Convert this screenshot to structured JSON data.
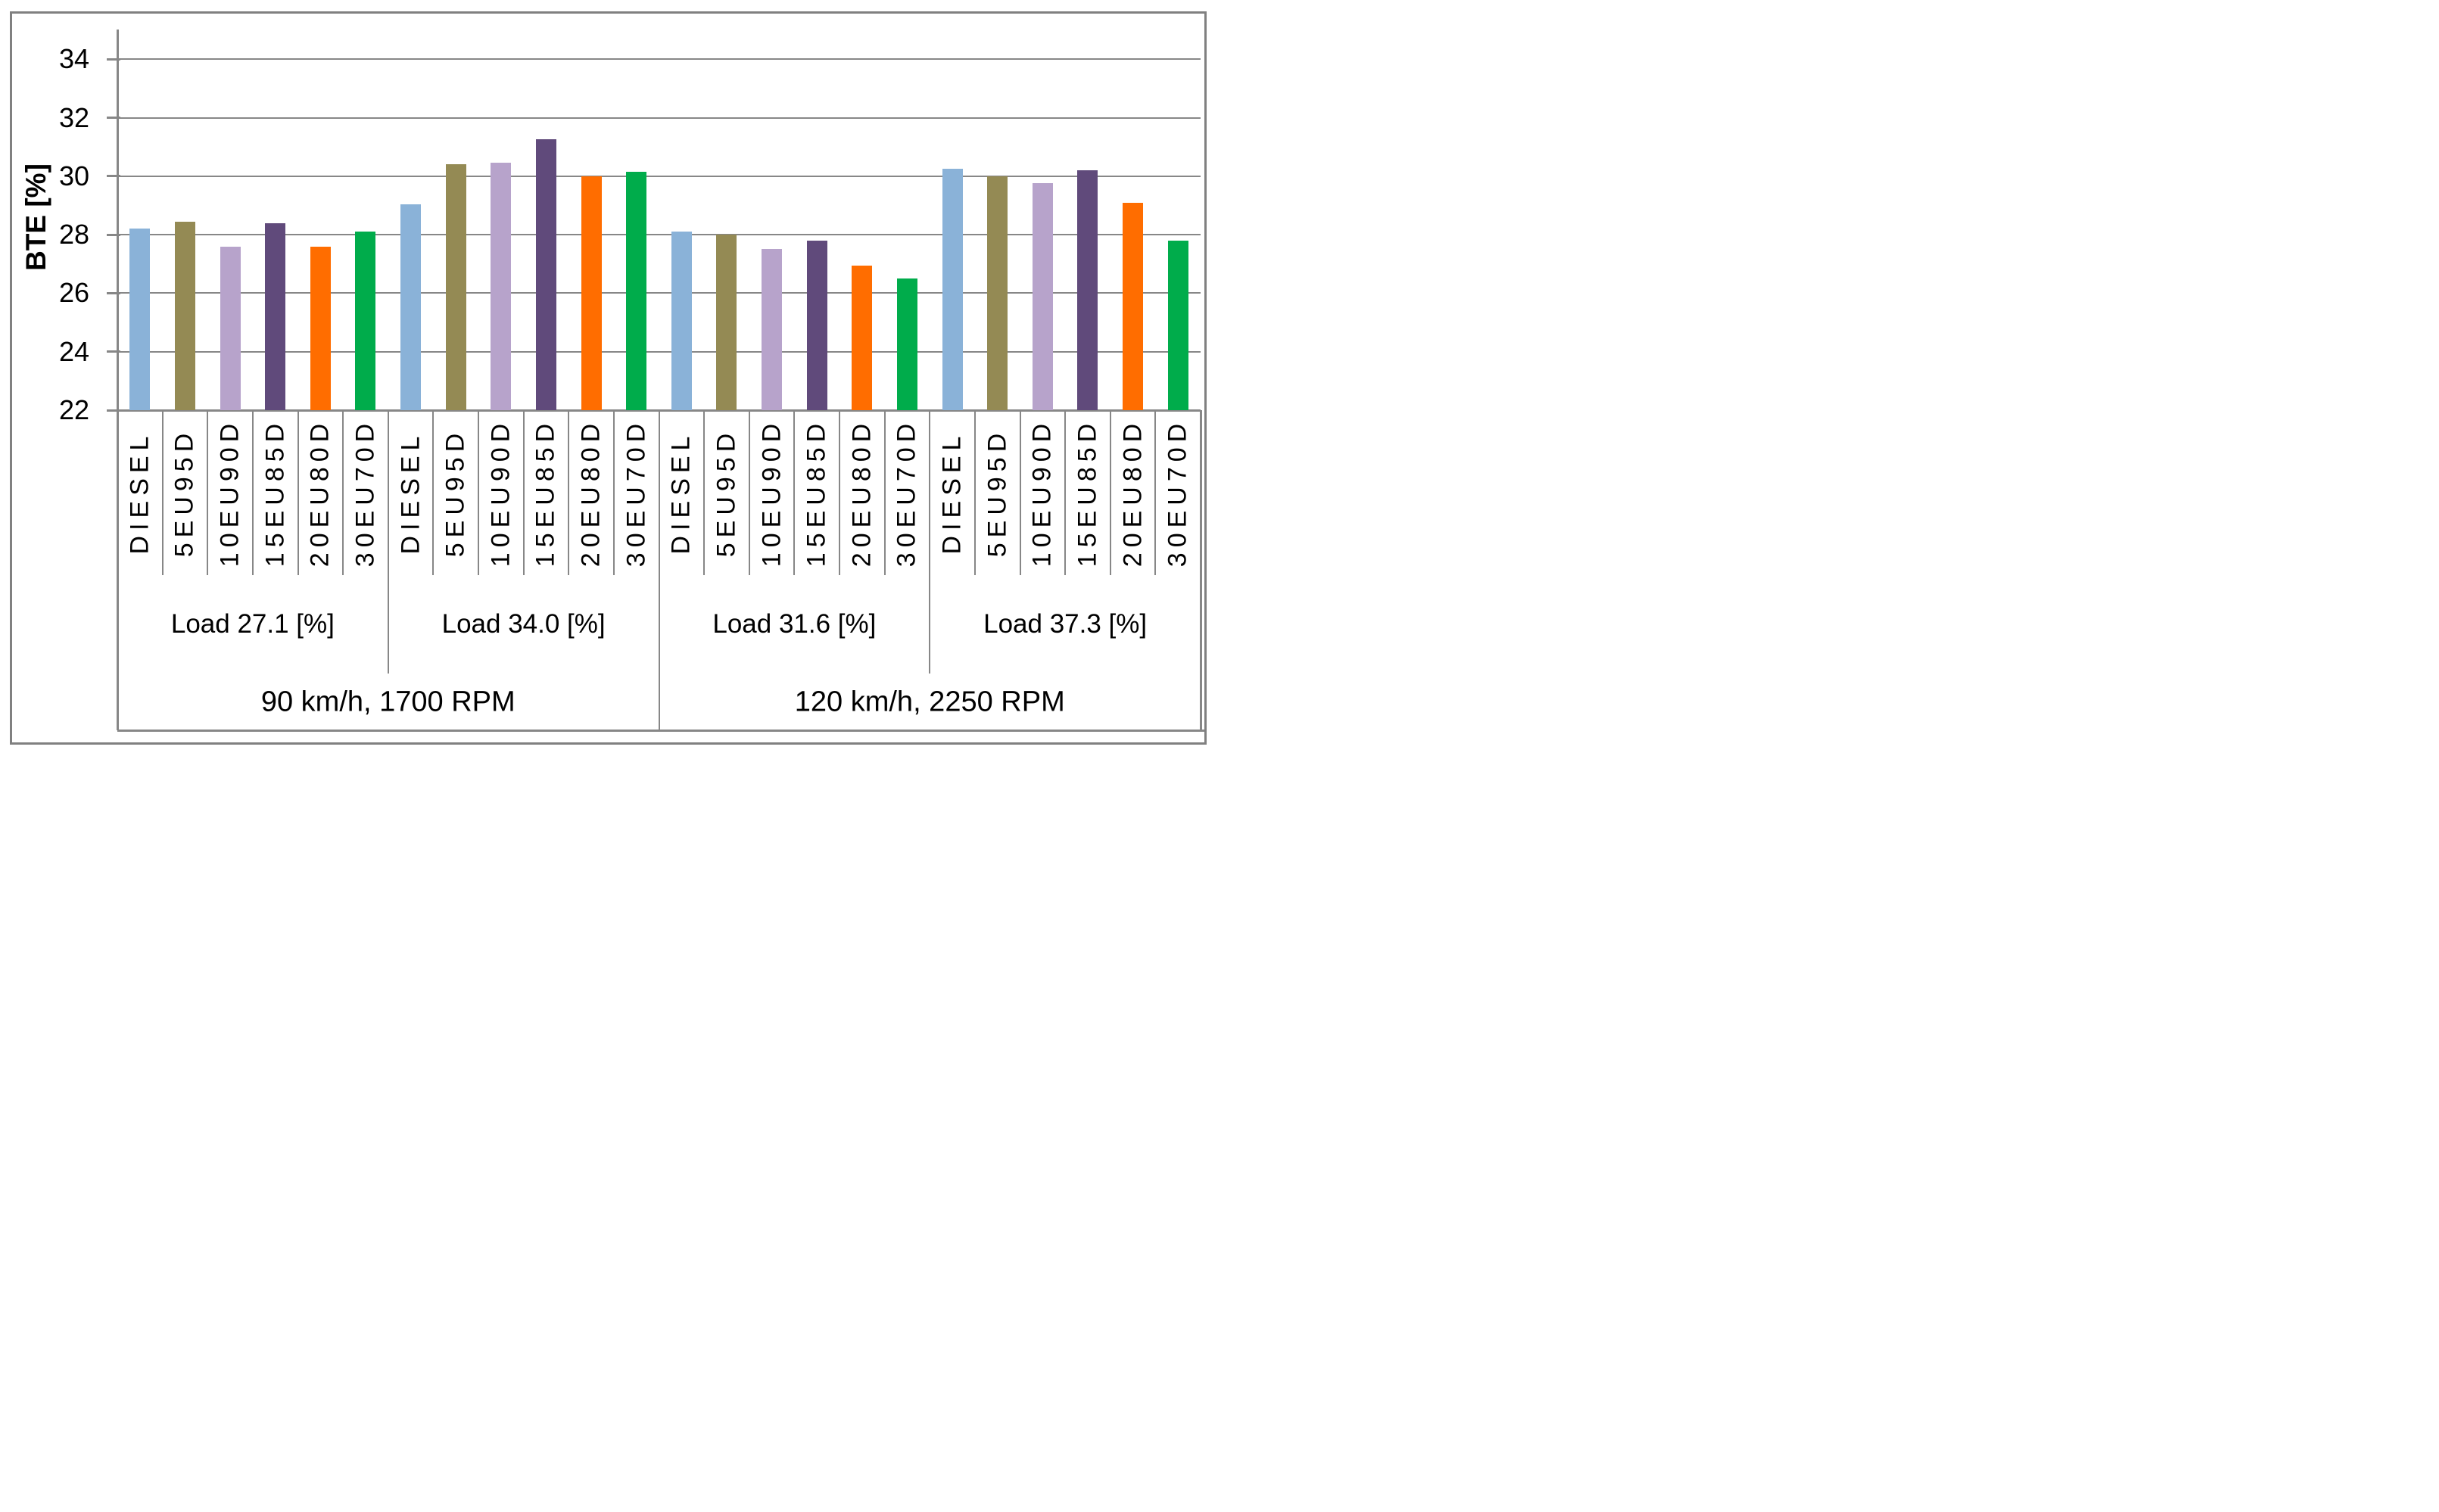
{
  "chart_data": {
    "type": "bar",
    "title": "",
    "ylabel": "BTE [%]",
    "ylim": [
      22,
      35
    ],
    "yticks": [
      22,
      24,
      26,
      28,
      30,
      32,
      34
    ],
    "grid": true,
    "legend": "none",
    "categories": [
      "DIESEL",
      "5EU95D",
      "10EU90D",
      "15EU85D",
      "20EU80D",
      "30EU70D"
    ],
    "series_colors": [
      "#8AB2D8",
      "#948A54",
      "#B7A3CB",
      "#604A7B",
      "#FF6D00",
      "#00AC4B"
    ],
    "groups": [
      {
        "load_label": "Load 27.1 [%]",
        "values": [
          28.2,
          28.45,
          27.6,
          28.4,
          27.6,
          28.1
        ]
      },
      {
        "load_label": "Load 34.0 [%]",
        "values": [
          29.05,
          30.4,
          30.45,
          31.25,
          30.0,
          30.15
        ]
      },
      {
        "load_label": "Load 31.6 [%]",
        "values": [
          28.1,
          28.0,
          27.5,
          27.8,
          26.95,
          26.5
        ]
      },
      {
        "load_label": "Load 37.3 [%]",
        "values": [
          30.25,
          30.0,
          29.75,
          30.2,
          29.1,
          27.8
        ]
      }
    ],
    "conditions": [
      {
        "label": "90 km/h, 1700 RPM",
        "group_span": [
          0,
          1
        ]
      },
      {
        "label": "120 km/h, 2250 RPM",
        "group_span": [
          2,
          3
        ]
      }
    ],
    "line_color": "#878787",
    "border_color": "#808080",
    "text_color": "#000000",
    "background_color": "#FFFFFF"
  }
}
